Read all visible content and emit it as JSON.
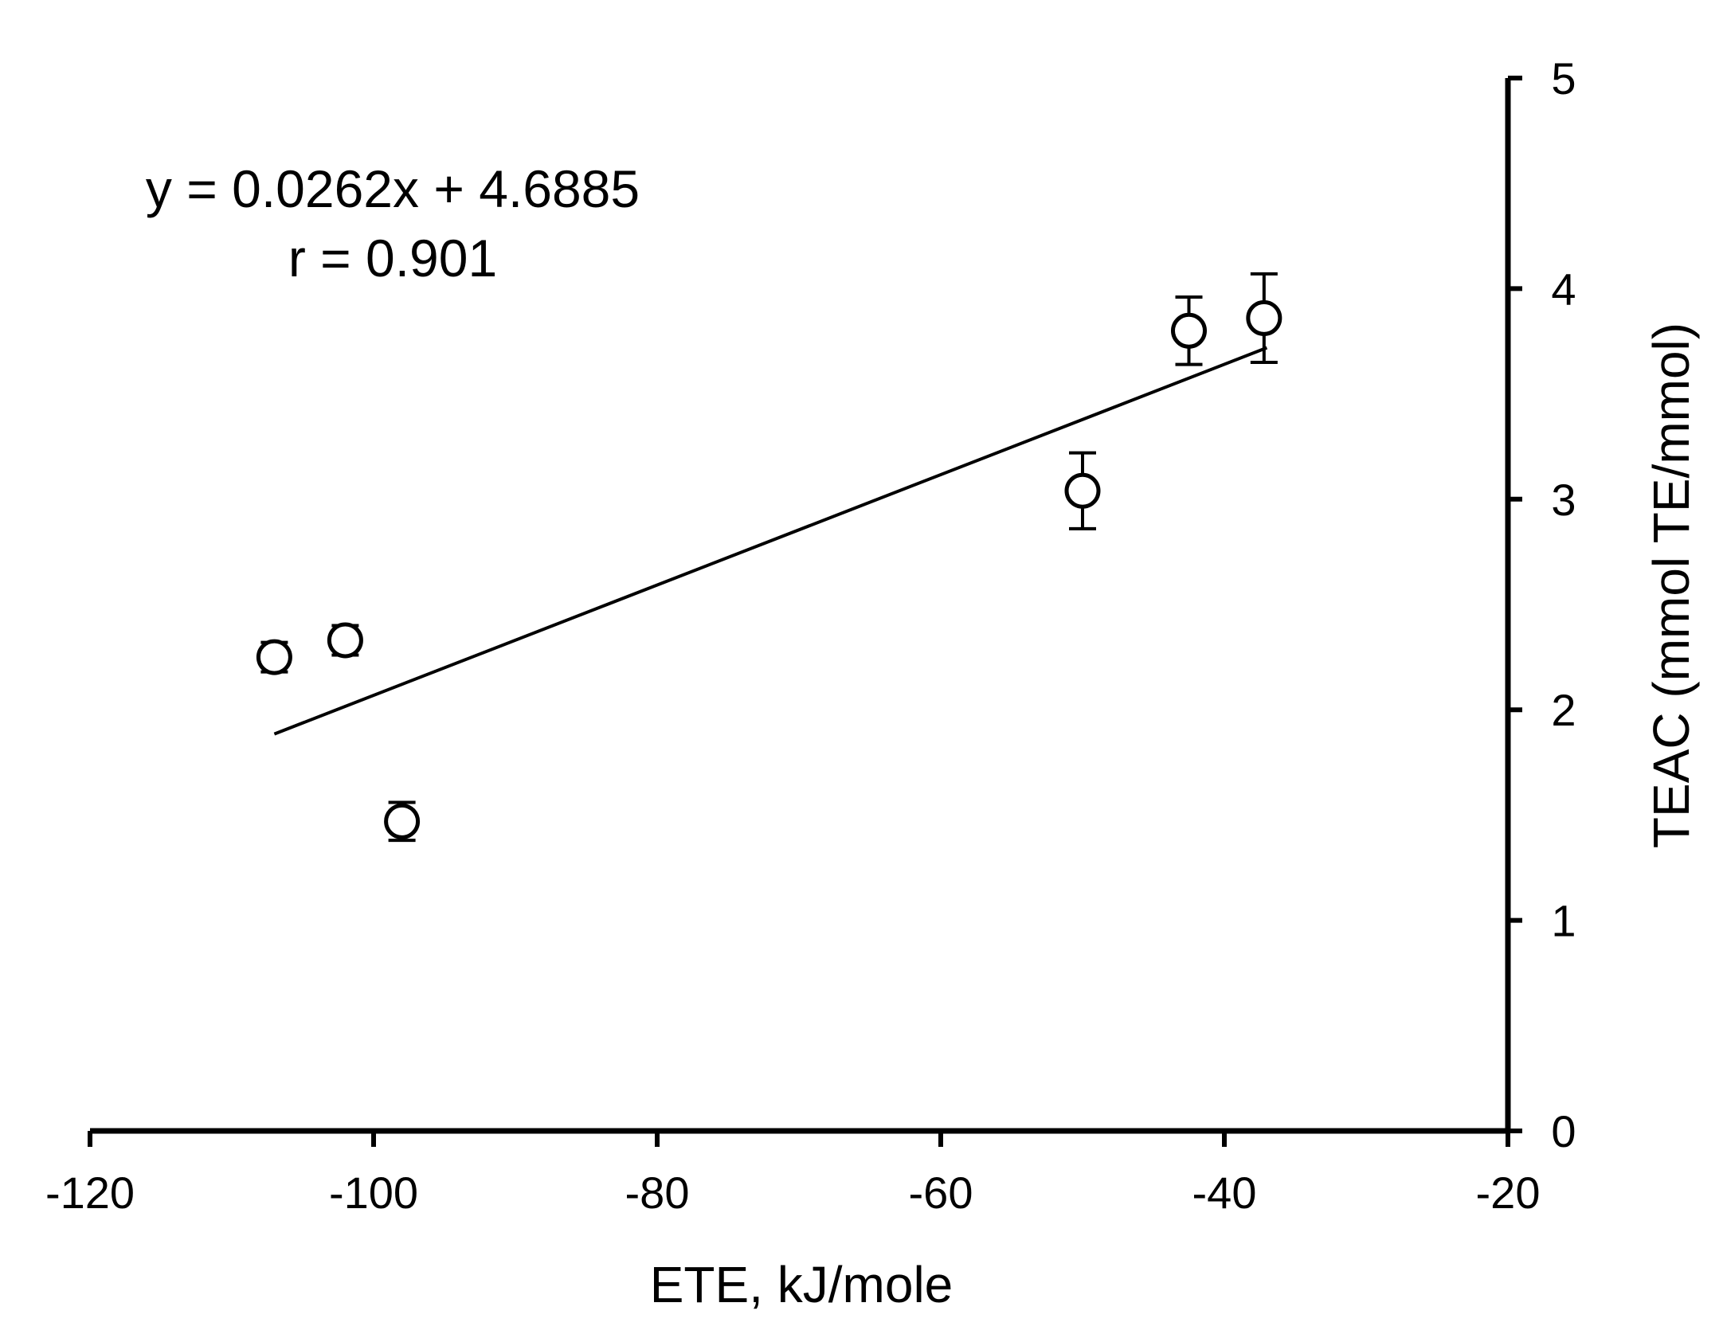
{
  "chart_data": {
    "type": "scatter",
    "title": "",
    "xlabel": "ETE, kJ/mole",
    "ylabel": "TEAC (mmol TE/mmol)",
    "xlim": [
      -120,
      -20
    ],
    "ylim": [
      0,
      5
    ],
    "x_ticks": [
      -120,
      -100,
      -80,
      -60,
      -40,
      -20
    ],
    "y_ticks": [
      0,
      1,
      2,
      3,
      4,
      5
    ],
    "y_axis_position": "right",
    "grid": false,
    "legend": "none",
    "points": [
      {
        "x": -107,
        "y": 2.25,
        "err": 0.07
      },
      {
        "x": -102,
        "y": 2.33,
        "err": 0.07
      },
      {
        "x": -98,
        "y": 1.47,
        "err": 0.09
      },
      {
        "x": -50,
        "y": 3.04,
        "err": 0.18
      },
      {
        "x": -42.5,
        "y": 3.8,
        "err": 0.16
      },
      {
        "x": -37.2,
        "y": 3.86,
        "err": 0.21
      }
    ],
    "trendline": {
      "x": [
        -107,
        -37
      ],
      "slope": 0.0262,
      "intercept": 4.6885
    },
    "annotations": [
      "y = 0.0262x + 4.6885",
      "r = 0.901"
    ],
    "colors": {
      "ink": "#000000",
      "marker_fill": "#ffffff"
    }
  }
}
